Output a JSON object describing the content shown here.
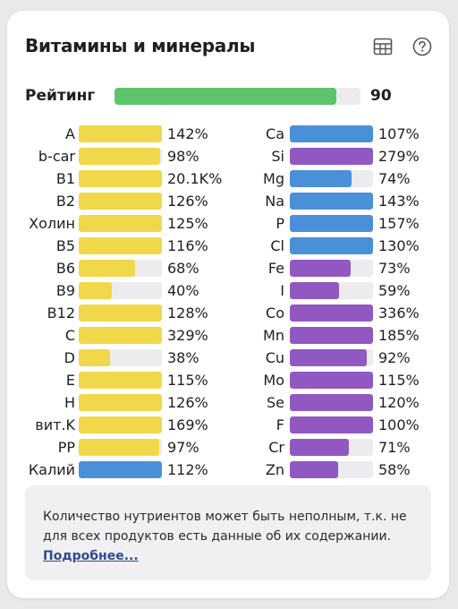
{
  "header": {
    "title": "Витамины и минералы",
    "table_icon": "table-icon",
    "help_icon": "help-circle-icon"
  },
  "rating": {
    "label": "Рейтинг",
    "value": "90",
    "fill_fraction": 0.9,
    "color": "#5dc46c"
  },
  "colors": {
    "yellow": "#f0d84a",
    "blue": "#4a90d9",
    "purple": "#9258c1"
  },
  "vitamins": [
    {
      "label": "A",
      "value": "142%",
      "fill": 1.0,
      "color": "yellow"
    },
    {
      "label": "b-car",
      "value": "98%",
      "fill": 0.98,
      "color": "yellow"
    },
    {
      "label": "B1",
      "value": "20.1K%",
      "fill": 1.0,
      "color": "yellow"
    },
    {
      "label": "B2",
      "value": "126%",
      "fill": 1.0,
      "color": "yellow"
    },
    {
      "label": "Холин",
      "value": "125%",
      "fill": 1.0,
      "color": "yellow"
    },
    {
      "label": "B5",
      "value": "116%",
      "fill": 1.0,
      "color": "yellow"
    },
    {
      "label": "B6",
      "value": "68%",
      "fill": 0.68,
      "color": "yellow"
    },
    {
      "label": "B9",
      "value": "40%",
      "fill": 0.4,
      "color": "yellow"
    },
    {
      "label": "B12",
      "value": "128%",
      "fill": 1.0,
      "color": "yellow"
    },
    {
      "label": "C",
      "value": "329%",
      "fill": 1.0,
      "color": "yellow"
    },
    {
      "label": "D",
      "value": "38%",
      "fill": 0.38,
      "color": "yellow"
    },
    {
      "label": "E",
      "value": "115%",
      "fill": 1.0,
      "color": "yellow"
    },
    {
      "label": "H",
      "value": "126%",
      "fill": 1.0,
      "color": "yellow"
    },
    {
      "label": "вит.K",
      "value": "169%",
      "fill": 1.0,
      "color": "yellow"
    },
    {
      "label": "PP",
      "value": "97%",
      "fill": 0.97,
      "color": "yellow"
    },
    {
      "label": "Калий",
      "value": "112%",
      "fill": 1.0,
      "color": "blue"
    }
  ],
  "minerals": [
    {
      "label": "Ca",
      "value": "107%",
      "fill": 1.0,
      "color": "blue"
    },
    {
      "label": "Si",
      "value": "279%",
      "fill": 1.0,
      "color": "purple"
    },
    {
      "label": "Mg",
      "value": "74%",
      "fill": 0.74,
      "color": "blue"
    },
    {
      "label": "Na",
      "value": "143%",
      "fill": 1.0,
      "color": "blue"
    },
    {
      "label": "P",
      "value": "157%",
      "fill": 1.0,
      "color": "blue"
    },
    {
      "label": "Cl",
      "value": "130%",
      "fill": 1.0,
      "color": "blue"
    },
    {
      "label": "Fe",
      "value": "73%",
      "fill": 0.73,
      "color": "purple"
    },
    {
      "label": "I",
      "value": "59%",
      "fill": 0.59,
      "color": "purple"
    },
    {
      "label": "Co",
      "value": "336%",
      "fill": 1.0,
      "color": "purple"
    },
    {
      "label": "Mn",
      "value": "185%",
      "fill": 1.0,
      "color": "purple"
    },
    {
      "label": "Cu",
      "value": "92%",
      "fill": 0.92,
      "color": "purple"
    },
    {
      "label": "Mo",
      "value": "115%",
      "fill": 1.0,
      "color": "purple"
    },
    {
      "label": "Se",
      "value": "120%",
      "fill": 1.0,
      "color": "purple"
    },
    {
      "label": "F",
      "value": "100%",
      "fill": 1.0,
      "color": "purple"
    },
    {
      "label": "Cr",
      "value": "71%",
      "fill": 0.71,
      "color": "purple"
    },
    {
      "label": "Zn",
      "value": "58%",
      "fill": 0.58,
      "color": "purple"
    }
  ],
  "note": {
    "text": "Количество нутриентов может быть неполным, т.к. не для всех продуктов есть данные об их содержании.",
    "link": "Подробнее..."
  }
}
